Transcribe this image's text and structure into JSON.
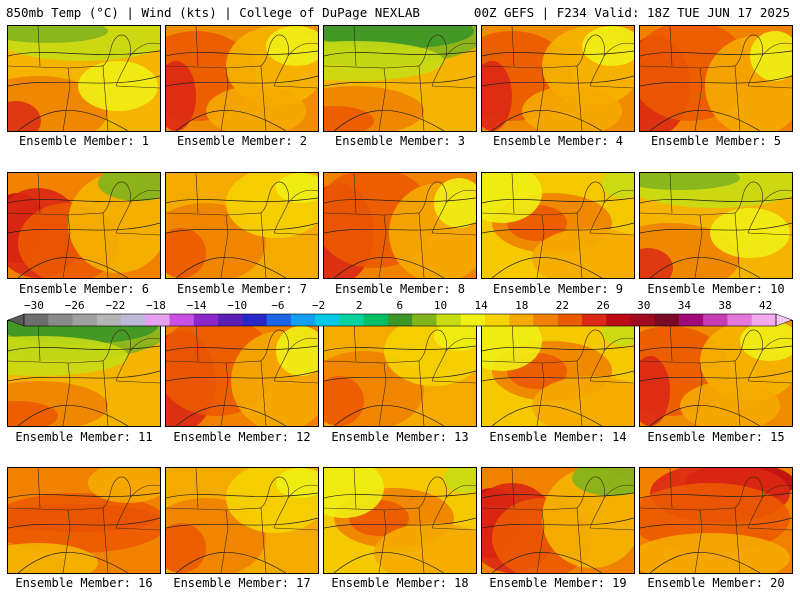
{
  "header": {
    "left_title": "850mb Temp (°C) | Wind (kts) | College of DuPage NEXLAB",
    "right_title": "00Z GEFS | F234 Valid: 18Z TUE JUN 17 2025"
  },
  "colorbar": {
    "labels": [
      "−30",
      "−26",
      "−22",
      "−18",
      "−14",
      "−10",
      "−6",
      "−2",
      "2",
      "6",
      "10",
      "14",
      "18",
      "22",
      "26",
      "30",
      "34",
      "38",
      "42"
    ],
    "colors": [
      "#6e6e6e",
      "#8a8a8a",
      "#a0a0a0",
      "#b4b4b4",
      "#c0b8d8",
      "#e6a0f0",
      "#c850e6",
      "#8c28c8",
      "#5a1eb4",
      "#2828c8",
      "#1e64e6",
      "#14a0f0",
      "#00c8e6",
      "#00d2a0",
      "#00be64",
      "#3c9628",
      "#82b41e",
      "#c8dc14",
      "#f0f014",
      "#f5d200",
      "#f5aa00",
      "#f08200",
      "#eb5a00",
      "#dc2814",
      "#be0a14",
      "#a00a1e",
      "#780a28",
      "#a00a78",
      "#c83cb4",
      "#e678dc",
      "#f5aaf0"
    ]
  },
  "members": [
    {
      "label": "Ensemble Member: 1",
      "style": "cool_north"
    },
    {
      "label": "Ensemble Member: 2",
      "style": "warm_west"
    },
    {
      "label": "Ensemble Member: 3",
      "style": "green_north"
    },
    {
      "label": "Ensemble Member: 4",
      "style": "warm_west"
    },
    {
      "label": "Ensemble Member: 5",
      "style": "hot_west"
    },
    {
      "label": "Ensemble Member: 6",
      "style": "very_hot_west"
    },
    {
      "label": "Ensemble Member: 7",
      "style": "orange"
    },
    {
      "label": "Ensemble Member: 8",
      "style": "hot_west"
    },
    {
      "label": "Ensemble Member: 9",
      "style": "yellow_orange"
    },
    {
      "label": "Ensemble Member: 10",
      "style": "cool_north"
    },
    {
      "label": "Ensemble Member: 11",
      "style": "green_north"
    },
    {
      "label": "Ensemble Member: 12",
      "style": "hot_west"
    },
    {
      "label": "Ensemble Member: 13",
      "style": "orange"
    },
    {
      "label": "Ensemble Member: 14",
      "style": "yellow_orange"
    },
    {
      "label": "Ensemble Member: 15",
      "style": "warm_west"
    },
    {
      "label": "Ensemble Member: 16",
      "style": "hot_band"
    },
    {
      "label": "Ensemble Member: 17",
      "style": "orange"
    },
    {
      "label": "Ensemble Member: 18",
      "style": "yellow_orange"
    },
    {
      "label": "Ensemble Member: 19",
      "style": "very_hot_west"
    },
    {
      "label": "Ensemble Member: 20",
      "style": "hot_north"
    }
  ]
}
